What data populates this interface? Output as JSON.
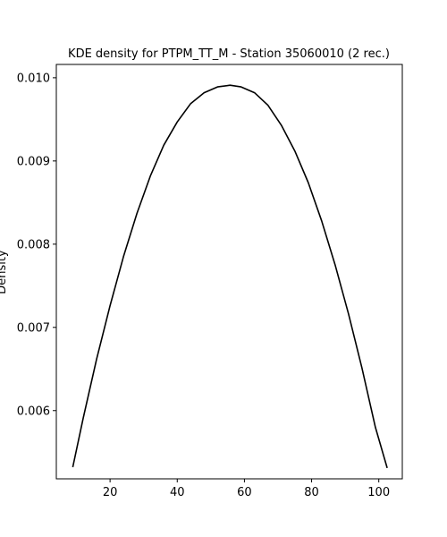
{
  "chart_data": {
    "type": "line",
    "title": "KDE density for PTPM_TT_M - Station 35060010 (2 rec.)",
    "xlabel": "",
    "ylabel": "Density",
    "xlim": [
      4.0,
      107.0
    ],
    "ylim": [
      0.00518,
      0.01016
    ],
    "x_ticks": [
      20,
      40,
      60,
      80,
      100
    ],
    "y_ticks": [
      0.006,
      0.007,
      0.008,
      0.009,
      0.01
    ],
    "x_tick_labels": [
      "20",
      "40",
      "60",
      "80",
      "100"
    ],
    "y_tick_labels": [
      "0.006",
      "0.007",
      "0.008",
      "0.009",
      "0.010"
    ],
    "grid": false,
    "series": [
      {
        "color": "#000000",
        "x": [
          8.9,
          12.0,
          16.0,
          20.0,
          24.0,
          28.0,
          32.0,
          36.0,
          40.0,
          44.0,
          48.0,
          52.0,
          55.7,
          59.0,
          63.0,
          67.0,
          71.0,
          75.0,
          79.0,
          83.0,
          87.0,
          91.0,
          95.0,
          99.0,
          102.5
        ],
        "y": [
          0.00532,
          0.00591,
          0.00662,
          0.00726,
          0.00785,
          0.00837,
          0.00882,
          0.00919,
          0.00947,
          0.00969,
          0.00982,
          0.00989,
          0.00991,
          0.00989,
          0.00982,
          0.00967,
          0.00943,
          0.00912,
          0.00874,
          0.00828,
          0.00775,
          0.00716,
          0.00651,
          0.0058,
          0.00531
        ]
      }
    ]
  }
}
